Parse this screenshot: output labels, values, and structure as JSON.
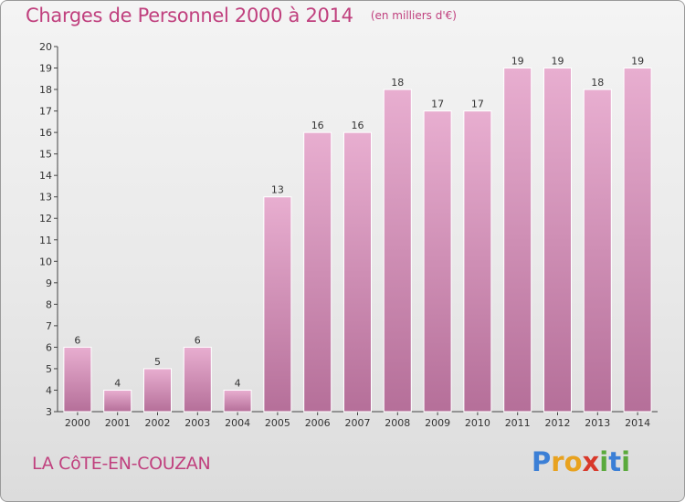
{
  "header": {
    "title": "Charges de Personnel 2000 à 2014",
    "subtitle": "(en milliers d'€)"
  },
  "footer": {
    "place": "LA CôTE-EN-COUZAN",
    "brand": {
      "text": "Proxiti",
      "letters": [
        "P",
        "r",
        "o",
        "x",
        "i",
        "t",
        "i"
      ],
      "colors": [
        "#3b7fd6",
        "#e8a21f",
        "#e8a21f",
        "#d8392b",
        "#5aaa3c",
        "#3b7fd6",
        "#5aaa3c"
      ]
    }
  },
  "colors": {
    "bar_top": "#e8aed0",
    "bar_bottom": "#b56f99",
    "bar_stroke": "#ffffff",
    "axis": "#444444",
    "text": "#333333",
    "accent": "#c0407e"
  },
  "chart_data": {
    "type": "bar",
    "title": "Charges de Personnel 2000 à 2014",
    "subtitle": "(en milliers d'€)",
    "categories": [
      "2000",
      "2001",
      "2002",
      "2003",
      "2004",
      "2005",
      "2006",
      "2007",
      "2008",
      "2009",
      "2010",
      "2011",
      "2012",
      "2013",
      "2014"
    ],
    "values": [
      6,
      4,
      5,
      6,
      4,
      13,
      16,
      16,
      18,
      17,
      17,
      19,
      19,
      18,
      19
    ],
    "data_labels": [
      "6",
      "4",
      "5",
      "6",
      "4",
      "13",
      "16",
      "16",
      "18",
      "17",
      "17",
      "19",
      "19",
      "18",
      "19"
    ],
    "ylim": [
      3,
      20
    ],
    "yticks": [
      3,
      4,
      5,
      6,
      7,
      8,
      9,
      10,
      11,
      12,
      13,
      14,
      15,
      16,
      17,
      18,
      19,
      20
    ],
    "xlabel": "",
    "ylabel": "",
    "grid": false,
    "legend": "none"
  }
}
